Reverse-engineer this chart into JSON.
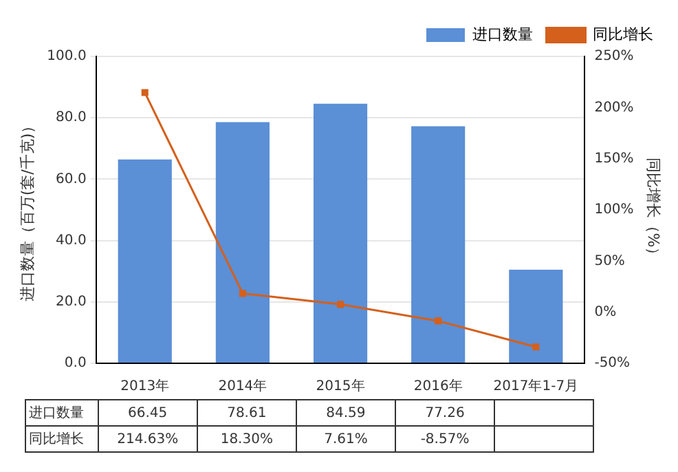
{
  "chart_data": {
    "type": "bar",
    "categories": [
      "2013年",
      "2014年",
      "2015年",
      "2016年",
      "2017年1-7月"
    ],
    "ylabel": "进口数量（百万(套/千克)）",
    "y2label": "同比增长（%）",
    "ylim": [
      0,
      100
    ],
    "yticks": [
      {
        "value": 0,
        "label": "0.0"
      },
      {
        "value": 20,
        "label": "20.0"
      },
      {
        "value": 40,
        "label": "40.0"
      },
      {
        "value": 60,
        "label": "60.0"
      },
      {
        "value": 80,
        "label": "80.0"
      },
      {
        "value": 100,
        "label": "100.0"
      }
    ],
    "y2lim": [
      -50,
      250
    ],
    "y2ticks": [
      {
        "value": -50,
        "label": "-50%"
      },
      {
        "value": 0,
        "label": "0%"
      },
      {
        "value": 50,
        "label": "50%"
      },
      {
        "value": 100,
        "label": "100%"
      },
      {
        "value": 150,
        "label": "150%"
      },
      {
        "value": 200,
        "label": "200%"
      },
      {
        "value": 250,
        "label": "250%"
      }
    ],
    "series": [
      {
        "name": "进口数量",
        "color": "#5b8fd6",
        "values": [
          66.45,
          78.61,
          84.59,
          77.26,
          30.5
        ],
        "value_labels": [
          "66.45",
          "78.61",
          "84.59",
          "77.26",
          null
        ]
      },
      {
        "name": "同比增长",
        "type": "line",
        "axis": "y2",
        "color": "#d4601c",
        "marker": "square",
        "values": [
          214.63,
          18.3,
          7.61,
          -8.57,
          -34
        ],
        "value_labels": [
          "214.63%",
          "18.30%",
          "7.61%",
          "-8.57%",
          null
        ]
      }
    ],
    "grid": "y",
    "legend": "top right"
  }
}
